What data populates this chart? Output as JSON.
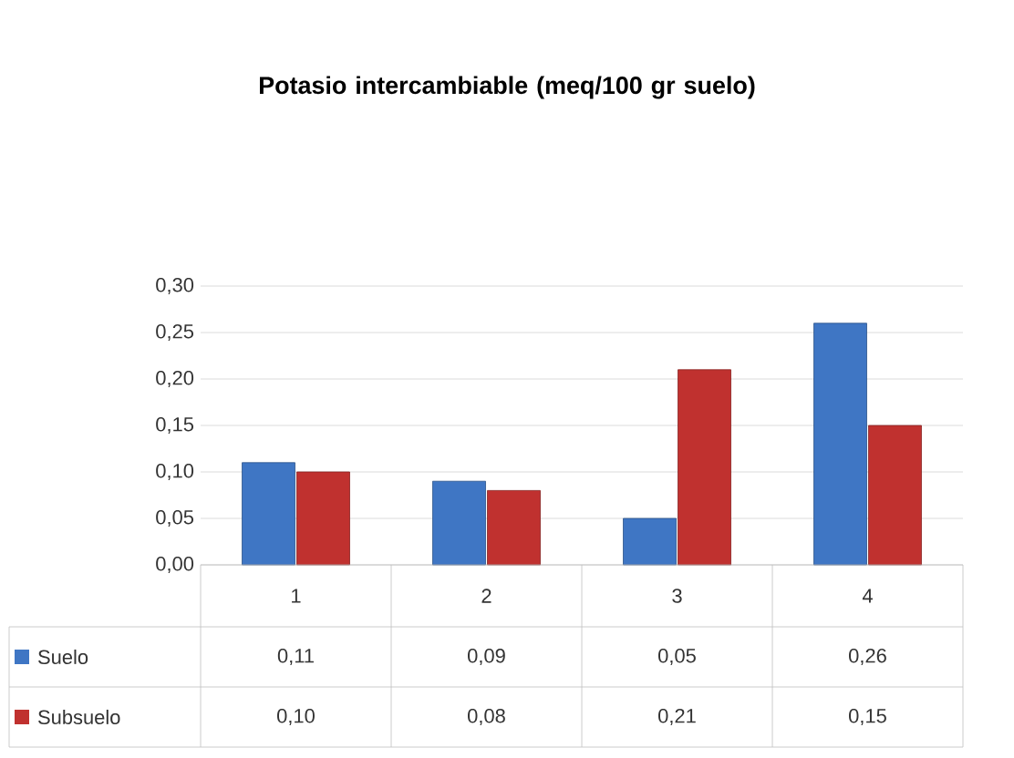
{
  "chart_data": {
    "type": "bar",
    "title": "Potasio intercambiable (meq/100 gr suelo)",
    "categories": [
      "1",
      "2",
      "3",
      "4"
    ],
    "series": [
      {
        "name": "Suelo",
        "color": "#3f76c4",
        "values": [
          0.11,
          0.09,
          0.05,
          0.26
        ],
        "value_labels": [
          "0,11",
          "0,09",
          "0,05",
          "0,26"
        ]
      },
      {
        "name": "Subsuelo",
        "color": "#c0312f",
        "values": [
          0.1,
          0.08,
          0.21,
          0.15
        ],
        "value_labels": [
          "0,10",
          "0,08",
          "0,21",
          "0,15"
        ]
      }
    ],
    "ylim": [
      0,
      0.3
    ],
    "yticks": [
      {
        "value": 0,
        "label": "0,00"
      },
      {
        "value": 0.05,
        "label": "0,05"
      },
      {
        "value": 0.1,
        "label": "0,10"
      },
      {
        "value": 0.15,
        "label": "0,15"
      },
      {
        "value": 0.2,
        "label": "0,20"
      },
      {
        "value": 0.25,
        "label": "0,25"
      },
      {
        "value": 0.3,
        "label": "0,30"
      }
    ],
    "grid": "y",
    "legend": "bottom left"
  }
}
